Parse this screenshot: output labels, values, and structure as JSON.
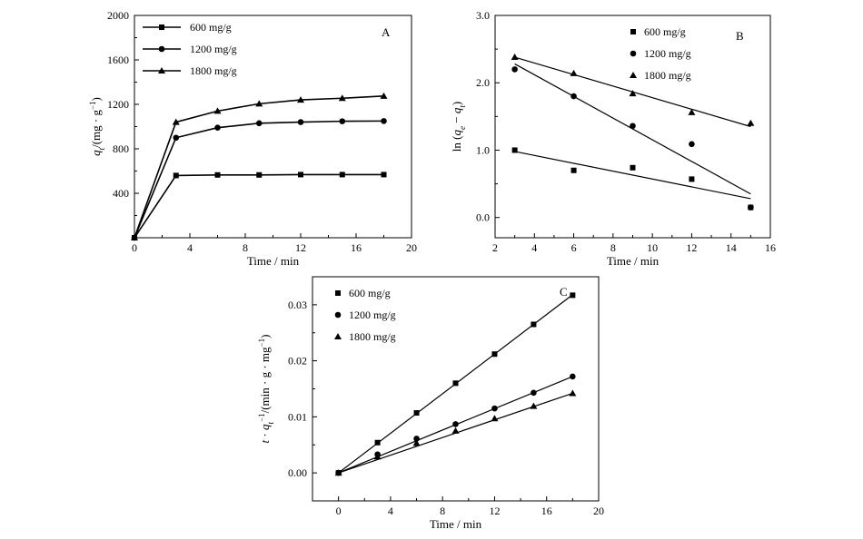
{
  "chart_data": [
    {
      "panel": "A",
      "type": "line",
      "title": "",
      "xlabel": "Time / min",
      "ylabel": "q_t / (mg · g⁻¹)",
      "ylabel_parts": {
        "sym": "q",
        "sub": "t",
        "unit": "/(mg · g",
        "sup": "−1",
        "close": ")"
      },
      "xlim": [
        0,
        20
      ],
      "ylim": [
        0,
        2000
      ],
      "xticks": [
        0,
        4,
        8,
        12,
        16,
        20
      ],
      "yticks": [
        0,
        400,
        800,
        1200,
        1600,
        2000
      ],
      "ytick_labels": [
        "",
        "400",
        "800",
        "1200",
        "1600",
        "2000"
      ],
      "grid": false,
      "legend_position": "top-left",
      "markers_on_lines": true,
      "series": [
        {
          "name": "600 mg/g",
          "marker": "square",
          "x": [
            0,
            3,
            6,
            9,
            12,
            15,
            18
          ],
          "y": [
            0,
            560,
            565,
            565,
            568,
            568,
            568
          ]
        },
        {
          "name": "1200 mg/g",
          "marker": "circle",
          "x": [
            0,
            3,
            6,
            9,
            12,
            15,
            18
          ],
          "y": [
            0,
            900,
            990,
            1030,
            1040,
            1048,
            1050
          ]
        },
        {
          "name": "1800 mg/g",
          "marker": "triangle",
          "x": [
            0,
            3,
            6,
            9,
            12,
            15,
            18
          ],
          "y": [
            0,
            1040,
            1140,
            1205,
            1240,
            1255,
            1275
          ]
        }
      ]
    },
    {
      "panel": "B",
      "type": "scatter",
      "title": "",
      "xlabel": "Time / min",
      "ylabel": "ln (q_e − q_t)",
      "ylabel_parts": {
        "pre": "ln (",
        "sym1": "q",
        "sub1": "e",
        "mid": " − ",
        "sym2": "q",
        "sub2": "t",
        "close": ")"
      },
      "xlim": [
        2,
        16
      ],
      "ylim": [
        -0.3,
        3.0
      ],
      "xticks": [
        2,
        4,
        6,
        8,
        10,
        12,
        14,
        16
      ],
      "yticks": [
        0.0,
        1.0,
        2.0,
        3.0
      ],
      "ytick_labels": [
        "0.0",
        "1.0",
        "2.0",
        "3.0"
      ],
      "grid": false,
      "legend_position": "top-center",
      "series": [
        {
          "name": "600 mg/g",
          "marker": "square",
          "x": [
            3,
            6,
            9,
            12,
            15
          ],
          "y": [
            1.0,
            0.7,
            0.74,
            0.57,
            0.15
          ],
          "fit": [
            [
              3,
              0.98
            ],
            [
              15,
              0.28
            ]
          ]
        },
        {
          "name": "1200 mg/g",
          "marker": "circle",
          "x": [
            3,
            6,
            9,
            12,
            15
          ],
          "y": [
            2.2,
            1.8,
            1.36,
            1.09,
            0.15
          ],
          "fit": [
            [
              3,
              2.28
            ],
            [
              15,
              0.35
            ]
          ]
        },
        {
          "name": "1800 mg/g",
          "marker": "triangle",
          "x": [
            3,
            6,
            9,
            12,
            15
          ],
          "y": [
            2.38,
            2.14,
            1.84,
            1.56,
            1.4
          ],
          "fit": [
            [
              3,
              2.38
            ],
            [
              15,
              1.35
            ]
          ]
        }
      ]
    },
    {
      "panel": "C",
      "type": "scatter",
      "title": "",
      "xlabel": "Time / min",
      "ylabel": "t · q_t⁻¹ / (min · g · mg⁻¹)",
      "ylabel_parts": {
        "sym": "t",
        "dot": " · ",
        "sym2": "q",
        "sub2": "t",
        "sup2": "−1",
        "unit": "/(min · g · mg",
        "sup": "−1",
        "close": ")"
      },
      "xlim": [
        -2,
        20
      ],
      "ylim": [
        -0.005,
        0.035
      ],
      "xticks": [
        0,
        4,
        8,
        12,
        16,
        20
      ],
      "yticks": [
        0.0,
        0.01,
        0.02,
        0.03
      ],
      "ytick_labels": [
        "0.00",
        "0.01",
        "0.02",
        "0.03"
      ],
      "grid": false,
      "legend_position": "top-left",
      "series": [
        {
          "name": "600 mg/g",
          "marker": "square",
          "x": [
            0,
            3,
            6,
            9,
            12,
            15,
            18
          ],
          "y": [
            0,
            0.0054,
            0.0107,
            0.016,
            0.0212,
            0.0265,
            0.0317
          ],
          "fit": [
            [
              0,
              0
            ],
            [
              18,
              0.0318
            ]
          ]
        },
        {
          "name": "1200 mg/g",
          "marker": "circle",
          "x": [
            0,
            3,
            6,
            9,
            12,
            15,
            18
          ],
          "y": [
            0,
            0.0033,
            0.0061,
            0.0087,
            0.0115,
            0.0143,
            0.0172
          ],
          "fit": [
            [
              0,
              0
            ],
            [
              18,
              0.0172
            ]
          ]
        },
        {
          "name": "1800 mg/g",
          "marker": "triangle",
          "x": [
            0,
            3,
            6,
            9,
            12,
            15,
            18
          ],
          "y": [
            0,
            0.0029,
            0.0053,
            0.0075,
            0.0097,
            0.0119,
            0.0142
          ],
          "fit": [
            [
              0,
              0
            ],
            [
              18,
              0.0142
            ]
          ]
        }
      ]
    }
  ]
}
